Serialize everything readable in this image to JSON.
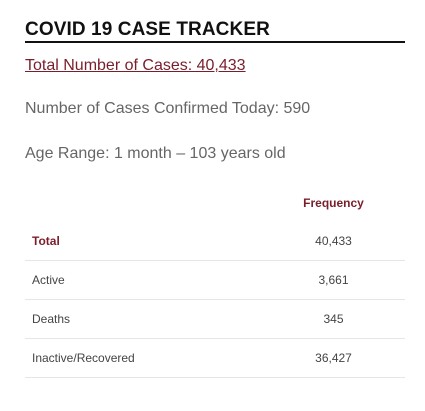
{
  "tracker": {
    "title": "COVID 19 CASE TRACKER",
    "total_link": "Total Number of Cases: 40,433",
    "confirmed_today": "Number of Cases Confirmed Today: 590",
    "age_range": "Age Range: 1 month – 103 years old"
  },
  "table": {
    "header_label": "",
    "header_value": "Frequency",
    "rows": [
      {
        "label": "Total",
        "value": "40,433"
      },
      {
        "label": "Active",
        "value": "3,661"
      },
      {
        "label": "Deaths",
        "value": "345"
      },
      {
        "label": "Inactive/Recovered",
        "value": "36,427"
      }
    ]
  },
  "colors": {
    "accent": "#7a1e2b",
    "text": "#444444",
    "muted": "#666666"
  }
}
